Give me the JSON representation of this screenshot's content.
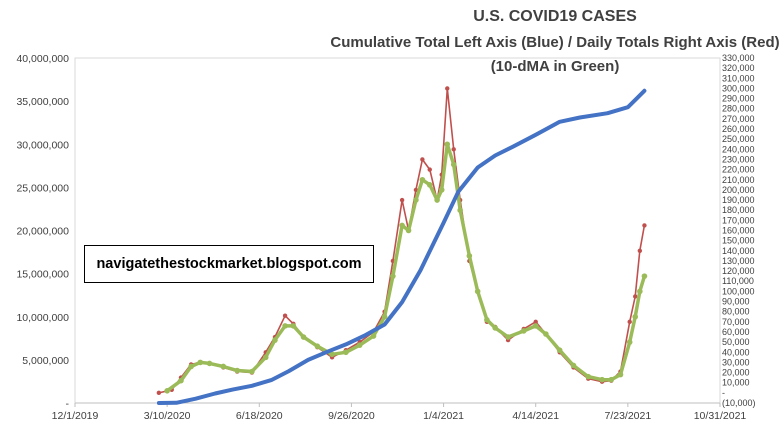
{
  "chart_data": {
    "type": "line",
    "title": "U.S. COVID19 CASES",
    "subtitle": "Cumulative Total Left Axis (Blue) / Daily Totals Right Axis (Red)",
    "subtitle2": "(10-dMA in Green)",
    "watermark": "navigatethestockmarket.blogspot.com",
    "x_ticks": [
      "12/1/2019",
      "3/10/2020",
      "6/18/2020",
      "9/26/2020",
      "1/4/2021",
      "4/14/2021",
      "7/23/2021",
      "10/31/2021"
    ],
    "left_axis": {
      "ylim": [
        0,
        40000000
      ],
      "ticks": [
        "-",
        "5,000,000",
        "10,000,000",
        "15,000,000",
        "20,000,000",
        "25,000,000",
        "30,000,000",
        "35,000,000",
        "40,000,000"
      ]
    },
    "right_axis": {
      "ylim": [
        -10000,
        330000
      ],
      "ticks": [
        "(10,000)",
        "-",
        "10,000",
        "20,000",
        "30,000",
        "40,000",
        "50,000",
        "60,000",
        "70,000",
        "80,000",
        "90,000",
        "100,000",
        "110,000",
        "120,000",
        "130,000",
        "140,000",
        "150,000",
        "160,000",
        "170,000",
        "180,000",
        "190,000",
        "200,000",
        "210,000",
        "220,000",
        "230,000",
        "240,000",
        "250,000",
        "260,000",
        "270,000",
        "280,000",
        "290,000",
        "300,000",
        "310,000",
        "320,000",
        "330,000"
      ]
    },
    "series": [
      {
        "name": "Cumulative Total",
        "axis": "left",
        "color": "#4472C4",
        "x": [
          "2020-03-01",
          "2020-03-20",
          "2020-04-10",
          "2020-05-01",
          "2020-05-20",
          "2020-06-10",
          "2020-07-01",
          "2020-07-20",
          "2020-08-10",
          "2020-09-01",
          "2020-09-20",
          "2020-10-10",
          "2020-11-01",
          "2020-11-20",
          "2020-12-10",
          "2021-01-04",
          "2021-01-20",
          "2021-02-10",
          "2021-03-01",
          "2021-03-20",
          "2021-04-14",
          "2021-05-10",
          "2021-06-01",
          "2021-07-01",
          "2021-07-23",
          "2021-08-10"
        ],
        "values": [
          0,
          20000,
          500000,
          1100000,
          1550000,
          2000000,
          2650000,
          3700000,
          5000000,
          6000000,
          6800000,
          7800000,
          9100000,
          11700000,
          15400000,
          20900000,
          24500000,
          27300000,
          28700000,
          29700000,
          31100000,
          32600000,
          33100000,
          33600000,
          34300000,
          36200000
        ]
      },
      {
        "name": "Daily Totals",
        "axis": "right",
        "color": "#C0504D",
        "x": [
          "2020-03-01",
          "2020-03-15",
          "2020-03-25",
          "2020-04-05",
          "2020-04-15",
          "2020-04-25",
          "2020-05-10",
          "2020-05-25",
          "2020-06-10",
          "2020-06-25",
          "2020-07-05",
          "2020-07-16",
          "2020-07-25",
          "2020-08-05",
          "2020-08-20",
          "2020-09-05",
          "2020-09-20",
          "2020-10-05",
          "2020-10-20",
          "2020-11-01",
          "2020-11-10",
          "2020-11-20",
          "2020-11-27",
          "2020-12-05",
          "2020-12-12",
          "2020-12-20",
          "2020-12-28",
          "2021-01-02",
          "2021-01-08",
          "2021-01-15",
          "2021-01-22",
          "2021-02-01",
          "2021-02-10",
          "2021-02-20",
          "2021-03-01",
          "2021-03-15",
          "2021-04-01",
          "2021-04-14",
          "2021-04-25",
          "2021-05-10",
          "2021-05-25",
          "2021-06-10",
          "2021-06-25",
          "2021-07-05",
          "2021-07-15",
          "2021-07-25",
          "2021-07-31",
          "2021-08-05",
          "2021-08-10"
        ],
        "values": [
          0,
          3000,
          15000,
          28000,
          30000,
          29000,
          25000,
          21000,
          20000,
          40000,
          55000,
          76000,
          68000,
          55000,
          45000,
          35000,
          42000,
          50000,
          60000,
          80000,
          130000,
          190000,
          160000,
          200000,
          230000,
          220000,
          190000,
          215000,
          300000,
          240000,
          190000,
          130000,
          100000,
          70000,
          65000,
          52000,
          63000,
          70000,
          58000,
          40000,
          25000,
          14000,
          11000,
          12000,
          21000,
          70000,
          95000,
          140000,
          165000
        ]
      },
      {
        "name": "10-dMA",
        "axis": "right",
        "color": "#9BBB59",
        "x": [
          "2020-03-10",
          "2020-03-25",
          "2020-04-05",
          "2020-04-15",
          "2020-04-25",
          "2020-05-10",
          "2020-05-25",
          "2020-06-10",
          "2020-06-25",
          "2020-07-05",
          "2020-07-16",
          "2020-07-25",
          "2020-08-05",
          "2020-08-20",
          "2020-09-05",
          "2020-09-20",
          "2020-10-05",
          "2020-10-20",
          "2020-11-01",
          "2020-11-10",
          "2020-11-20",
          "2020-11-27",
          "2020-12-05",
          "2020-12-12",
          "2020-12-20",
          "2020-12-28",
          "2021-01-02",
          "2021-01-08",
          "2021-01-15",
          "2021-01-22",
          "2021-02-01",
          "2021-02-10",
          "2021-02-20",
          "2021-03-01",
          "2021-03-15",
          "2021-04-01",
          "2021-04-14",
          "2021-04-25",
          "2021-05-10",
          "2021-05-25",
          "2021-06-10",
          "2021-06-25",
          "2021-07-05",
          "2021-07-15",
          "2021-07-25",
          "2021-07-31",
          "2021-08-05",
          "2021-08-10"
        ],
        "values": [
          2000,
          12000,
          26000,
          30000,
          29000,
          26000,
          22000,
          21000,
          35000,
          52000,
          66000,
          66000,
          55000,
          46000,
          38000,
          40000,
          47000,
          56000,
          75000,
          115000,
          165000,
          160000,
          190000,
          210000,
          205000,
          190000,
          200000,
          245000,
          225000,
          180000,
          135000,
          100000,
          72000,
          64000,
          55000,
          61000,
          66000,
          58000,
          42000,
          27000,
          16000,
          13000,
          13000,
          18000,
          50000,
          75000,
          100000,
          115000
        ]
      }
    ]
  }
}
